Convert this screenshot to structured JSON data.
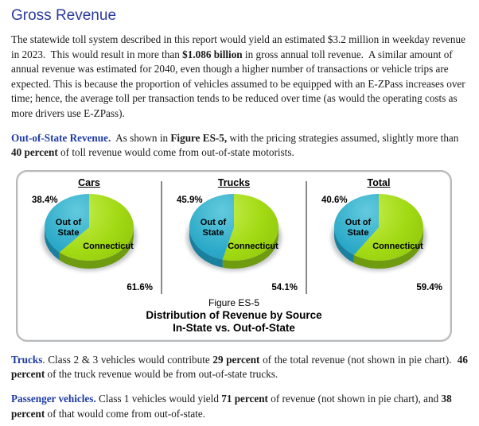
{
  "page_title": "Gross Revenue",
  "paragraphs": [
    {
      "segments": [
        {
          "t": "The statewide toll system described in this report would yield an estimated $3.2 million in weekday revenue in 2023.  This would result in more than ",
          "s": ""
        },
        {
          "t": "$1.086 billion",
          "s": "b"
        },
        {
          "t": " in gross annual toll revenue.  A similar amount of annual revenue was estimated for 2040, even though a higher number of transactions or vehicle trips are expected. This is because the proportion of vehicles assumed to be equipped with an E-ZPass increases over time; hence, the average toll per transaction tends to be reduced over time (as would the operating costs as more drivers use E-ZPass).",
          "s": ""
        }
      ]
    },
    {
      "segments": [
        {
          "t": "Out-of-State Revenue.",
          "s": "lead"
        },
        {
          "t": "  As shown in ",
          "s": ""
        },
        {
          "t": "Figure ES-5,",
          "s": "b"
        },
        {
          "t": " with the pricing strategies assumed, slightly more than ",
          "s": ""
        },
        {
          "t": "40 percent",
          "s": "b"
        },
        {
          "t": " of toll revenue would come from out-of-state motorists.",
          "s": ""
        }
      ]
    },
    {
      "align": "justify",
      "segments": [
        {
          "t": "Trucks",
          "s": "lead"
        },
        {
          "t": ". Class 2 & 3 vehicles would contribute ",
          "s": ""
        },
        {
          "t": "29 percent",
          "s": "b"
        },
        {
          "t": " of the total revenue (not shown in pie chart).  ",
          "s": ""
        },
        {
          "t": "46 percent",
          "s": "b"
        },
        {
          "t": " of the truck revenue would be from out-of-state trucks.",
          "s": ""
        }
      ]
    },
    {
      "segments": [
        {
          "t": "Passenger vehicles.",
          "s": "lead"
        },
        {
          "t": " Class 1 vehicles would yield ",
          "s": ""
        },
        {
          "t": "71 percent",
          "s": "b"
        },
        {
          "t": " of revenue (not shown in pie chart), and ",
          "s": ""
        },
        {
          "t": "38 percent",
          "s": "b"
        },
        {
          "t": " of that would come from out-of-state.",
          "s": ""
        }
      ]
    }
  ],
  "figure": {
    "caption": [
      "Figure ES-5",
      "Distribution of Revenue by Source",
      "In-State vs. Out-of-State"
    ],
    "colors": {
      "in": "#a2da14",
      "in_hi": "#c6ee50",
      "in_lo": "#8cc40c",
      "in_side": "#6f9b10",
      "out": "#2ba9c8",
      "out_hi": "#63cadd",
      "out_lo": "#1f93b3",
      "out_side": "#19809d",
      "shadow": "#8d939a",
      "divider": "#8a8a8a",
      "box_border": "#b6b8ba",
      "heading_blue": "#2b3aa0",
      "lead_blue": "#1e3ba4"
    }
  },
  "chart_data": [
    {
      "type": "pie",
      "title": "Cars",
      "slices": [
        {
          "label": "Connecticut",
          "value": 61.6,
          "pct_label": "61.6%"
        },
        {
          "label": "Out of State",
          "value": 38.4,
          "pct_label": "38.4%"
        }
      ]
    },
    {
      "type": "pie",
      "title": "Trucks",
      "slices": [
        {
          "label": "Connecticut",
          "value": 54.1,
          "pct_label": "54.1%"
        },
        {
          "label": "Out of State",
          "value": 45.9,
          "pct_label": "45.9%"
        }
      ]
    },
    {
      "type": "pie",
      "title": "Total",
      "slices": [
        {
          "label": "Connecticut",
          "value": 59.4,
          "pct_label": "59.4%"
        },
        {
          "label": "Out of State",
          "value": 40.6,
          "pct_label": "40.6%"
        }
      ]
    }
  ]
}
